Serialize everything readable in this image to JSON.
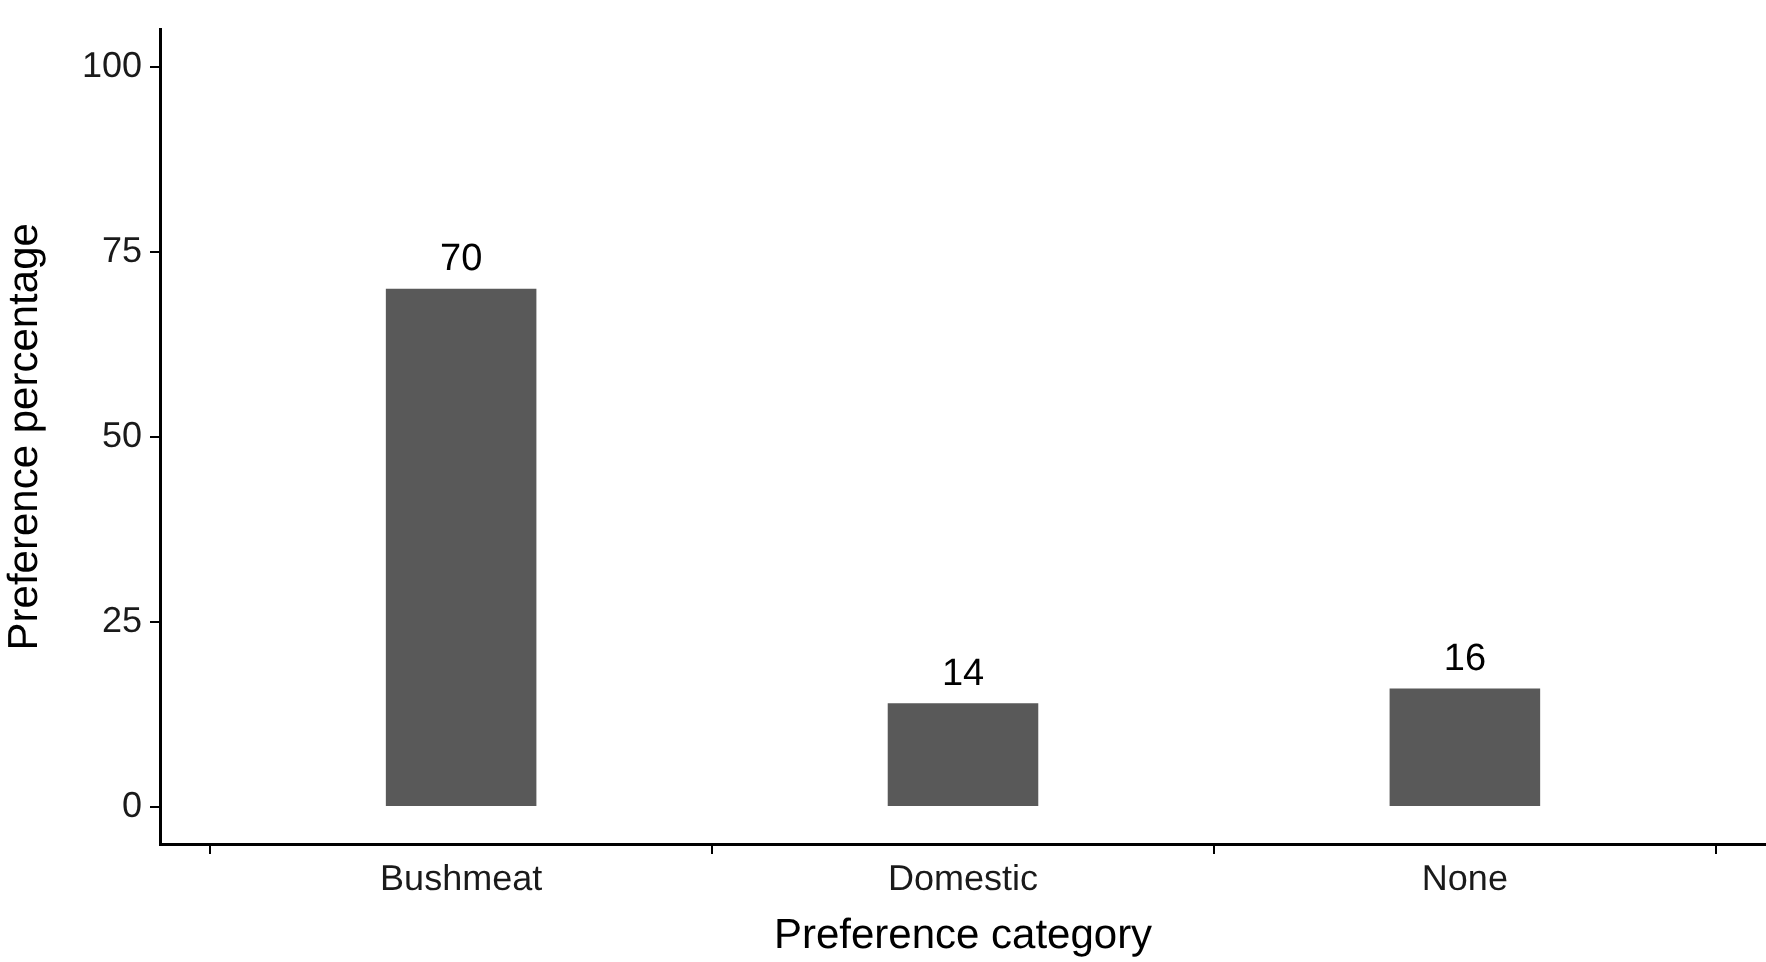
{
  "chart_data": {
    "type": "bar",
    "xlabel": "Preference category",
    "ylabel": "Preference percentage",
    "categories": [
      "Bushmeat",
      "Domestic",
      "None"
    ],
    "values": [
      70,
      14,
      16
    ],
    "color": "#595959",
    "ylim": [
      -5,
      105
    ],
    "yticks": [
      0,
      25,
      50,
      75,
      100
    ],
    "grid": false,
    "legend": false,
    "data_labels": true
  }
}
